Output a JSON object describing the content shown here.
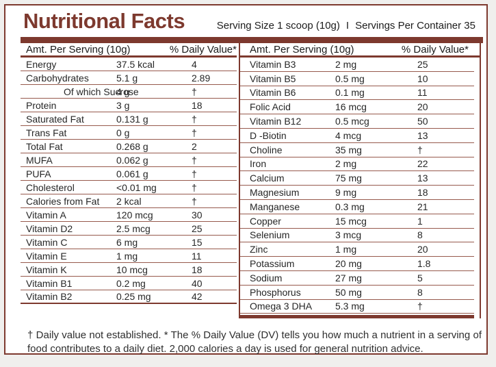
{
  "accent_color": "#7d392e",
  "title": "Nutritional Facts",
  "serving_info": {
    "serving_size": "Serving Size 1 scoop (10g)",
    "separator": "I",
    "servings_per_container": "Servings Per Container 35"
  },
  "tables": [
    {
      "header": {
        "amount_label": "Amt. Per Serving (10g)",
        "dv_label": "% Daily Value*"
      },
      "rows": [
        {
          "name": "Energy",
          "amount": "37.5 kcal",
          "dv": "4"
        },
        {
          "name": "Carbohydrates",
          "amount": "5.1 g",
          "dv": "2.89"
        },
        {
          "name": "Of which Sucrose",
          "amount": "4 g",
          "dv": "†",
          "indent": true
        },
        {
          "name": "Protein",
          "amount": "3 g",
          "dv": "18"
        },
        {
          "name": "Saturated Fat",
          "amount": "0.131 g",
          "dv": "†"
        },
        {
          "name": "Trans Fat",
          "amount": "0 g",
          "dv": "†"
        },
        {
          "name": "Total Fat",
          "amount": "0.268 g",
          "dv": "2"
        },
        {
          "name": "MUFA",
          "amount": "0.062 g",
          "dv": "†"
        },
        {
          "name": "PUFA",
          "amount": "0.061 g",
          "dv": "†"
        },
        {
          "name": "Cholesterol",
          "amount": "<0.01 mg",
          "dv": "†"
        },
        {
          "name": "Calories from Fat",
          "amount": "2 kcal",
          "dv": "†"
        },
        {
          "name": "Vitamin A",
          "amount": "120 mcg",
          "dv": "30"
        },
        {
          "name": "Vitamin D2",
          "amount": "2.5 mcg",
          "dv": "25"
        },
        {
          "name": "Vitamin C",
          "amount": "6 mg",
          "dv": "15"
        },
        {
          "name": "Vitamin E",
          "amount": "1 mg",
          "dv": "11"
        },
        {
          "name": "Vitamin K",
          "amount": "10 mcg",
          "dv": "18"
        },
        {
          "name": "Vitamin B1",
          "amount": "0.2 mg",
          "dv": "40"
        },
        {
          "name": "Vitamin B2",
          "amount": "0.25 mg",
          "dv": "42"
        }
      ]
    },
    {
      "header": {
        "amount_label": "Amt. Per Serving (10g)",
        "dv_label": "% Daily Value*"
      },
      "rows": [
        {
          "name": "Vitamin B3",
          "amount": "2 mg",
          "dv": "25"
        },
        {
          "name": "Vitamin B5",
          "amount": "0.5 mg",
          "dv": "10"
        },
        {
          "name": "Vitamin B6",
          "amount": "0.1 mg",
          "dv": "11"
        },
        {
          "name": "Folic Acid",
          "amount": "16 mcg",
          "dv": "20"
        },
        {
          "name": "Vitamin B12",
          "amount": "0.5 mcg",
          "dv": "50"
        },
        {
          "name": "D -Biotin",
          "amount": "4 mcg",
          "dv": "13"
        },
        {
          "name": "Choline",
          "amount": "35 mg",
          "dv": "†"
        },
        {
          "name": "Iron",
          "amount": "2 mg",
          "dv": "22"
        },
        {
          "name": "Calcium",
          "amount": "75 mg",
          "dv": "13"
        },
        {
          "name": "Magnesium",
          "amount": "9 mg",
          "dv": "18"
        },
        {
          "name": "Manganese",
          "amount": "0.3 mg",
          "dv": "21"
        },
        {
          "name": "Copper",
          "amount": "15 mcg",
          "dv": "1"
        },
        {
          "name": "Selenium",
          "amount": "3 mcg",
          "dv": "8"
        },
        {
          "name": "Zinc",
          "amount": "1 mg",
          "dv": "20"
        },
        {
          "name": "Potassium",
          "amount": "20 mg",
          "dv": "1.8"
        },
        {
          "name": "Sodium",
          "amount": "27 mg",
          "dv": "5"
        },
        {
          "name": "Phosphorus",
          "amount": "50 mg",
          "dv": "8"
        },
        {
          "name": "Omega 3 DHA",
          "amount": "5.3 mg",
          "dv": "†"
        }
      ]
    }
  ],
  "footnote": "† Daily value not established. * The % Daily Value (DV) tells you how much a nutrient in a serving of food contributes to a daily diet. 2,000 calories a day is used for general nutrition advice."
}
